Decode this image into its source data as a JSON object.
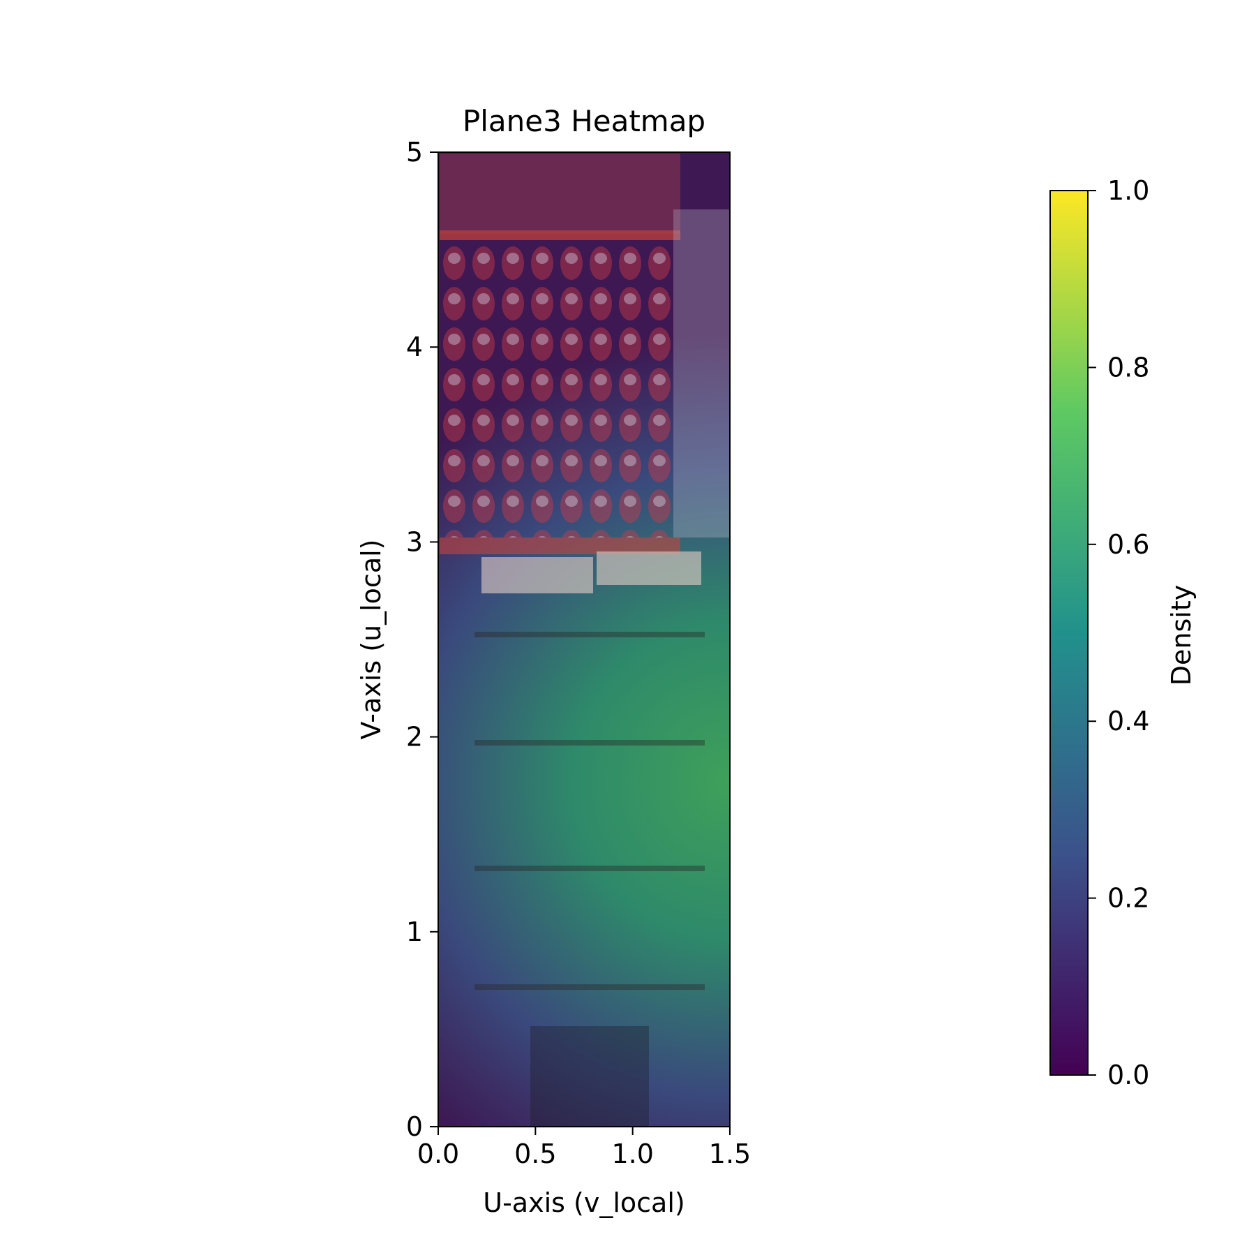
{
  "chart_data": {
    "type": "heatmap",
    "title": "Plane3 Heatmap",
    "xlabel": "U-axis (v_local)",
    "ylabel": "V-axis (u_local)",
    "xlim": [
      0,
      1.5
    ],
    "ylim": [
      0,
      5
    ],
    "x_ticks": [
      {
        "value": 0.0,
        "label": "0.0"
      },
      {
        "value": 0.5,
        "label": "0.5"
      },
      {
        "value": 1.0,
        "label": "1.0"
      },
      {
        "value": 1.5,
        "label": "1.5"
      }
    ],
    "y_ticks": [
      {
        "value": 0,
        "label": "0"
      },
      {
        "value": 1,
        "label": "1"
      },
      {
        "value": 2,
        "label": "2"
      },
      {
        "value": 3,
        "label": "3"
      },
      {
        "value": 4,
        "label": "4"
      },
      {
        "value": 5,
        "label": "5"
      }
    ],
    "colorbar": {
      "label": "Density",
      "colormap": "viridis",
      "range": [
        0,
        1
      ],
      "ticks": [
        {
          "value": 0.0,
          "label": "0.0"
        },
        {
          "value": 0.2,
          "label": "0.2"
        },
        {
          "value": 0.4,
          "label": "0.4"
        },
        {
          "value": 0.6,
          "label": "0.6"
        },
        {
          "value": 0.8,
          "label": "0.8"
        },
        {
          "value": 1.0,
          "label": "1.0"
        }
      ]
    },
    "density_field": {
      "peak": {
        "x": 1.5,
        "y": 1.5,
        "value": 0.6
      },
      "background_image": "photo of a shop shelf with products overlaid"
    },
    "colors": {
      "viridis": [
        "#440154",
        "#3b528b",
        "#21918c",
        "#5ec962",
        "#fde725"
      ],
      "overlay_low": "#3c1450",
      "overlay_high": "#3c8c46"
    }
  }
}
